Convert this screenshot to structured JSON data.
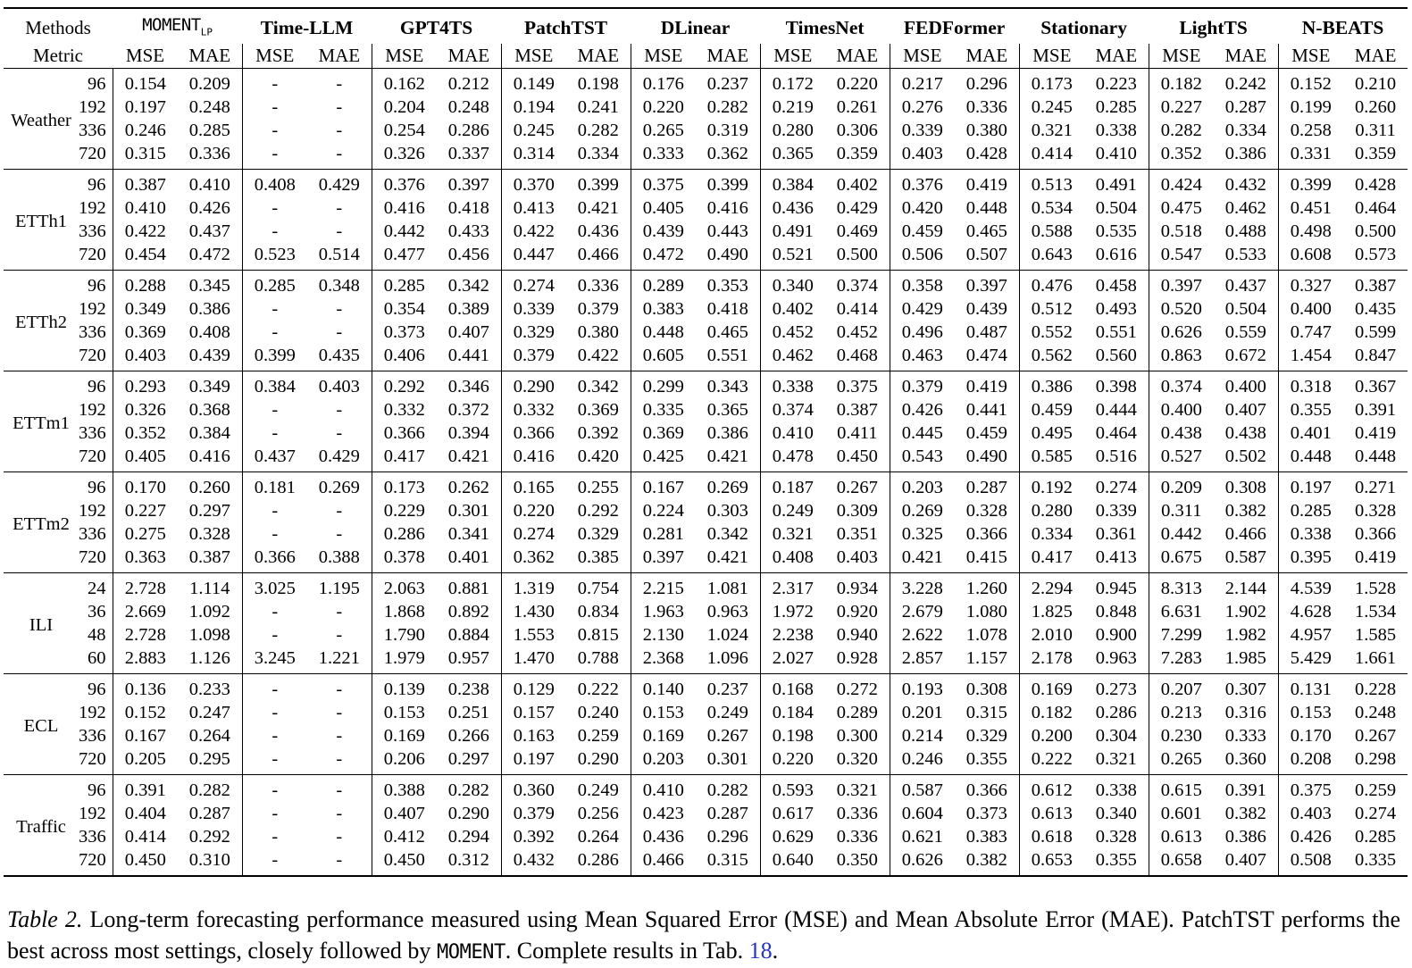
{
  "table": {
    "corner": {
      "methods_label": "Methods",
      "metric_label": "Metric"
    },
    "metric_cols": [
      "MSE",
      "MAE"
    ],
    "methods": [
      {
        "name": "MOMENT",
        "subscript": "LP",
        "font": "mono"
      },
      {
        "name": "Time-LLM"
      },
      {
        "name": "GPT4TS"
      },
      {
        "name": "PatchTST"
      },
      {
        "name": "DLinear"
      },
      {
        "name": "TimesNet"
      },
      {
        "name": "FEDFormer"
      },
      {
        "name": "Stationary"
      },
      {
        "name": "LightTS"
      },
      {
        "name": "N-BEATS"
      }
    ],
    "groups": [
      {
        "dataset": "Weather",
        "rows": [
          {
            "horizon": "96",
            "cells": [
              "0.154",
              "0.209",
              "-",
              "-",
              "0.162",
              "0.212",
              "0.149",
              "0.198",
              "0.176",
              "0.237",
              "0.172",
              "0.220",
              "0.217",
              "0.296",
              "0.173",
              "0.223",
              "0.182",
              "0.242",
              "0.152",
              "0.210"
            ]
          },
          {
            "horizon": "192",
            "cells": [
              "0.197",
              "0.248",
              "-",
              "-",
              "0.204",
              "0.248",
              "0.194",
              "0.241",
              "0.220",
              "0.282",
              "0.219",
              "0.261",
              "0.276",
              "0.336",
              "0.245",
              "0.285",
              "0.227",
              "0.287",
              "0.199",
              "0.260"
            ]
          },
          {
            "horizon": "336",
            "cells": [
              "0.246",
              "0.285",
              "-",
              "-",
              "0.254",
              "0.286",
              "0.245",
              "0.282",
              "0.265",
              "0.319",
              "0.280",
              "0.306",
              "0.339",
              "0.380",
              "0.321",
              "0.338",
              "0.282",
              "0.334",
              "0.258",
              "0.311"
            ]
          },
          {
            "horizon": "720",
            "cells": [
              "0.315",
              "0.336",
              "-",
              "-",
              "0.326",
              "0.337",
              "0.314",
              "0.334",
              "0.333",
              "0.362",
              "0.365",
              "0.359",
              "0.403",
              "0.428",
              "0.414",
              "0.410",
              "0.352",
              "0.386",
              "0.331",
              "0.359"
            ]
          }
        ]
      },
      {
        "dataset": "ETTh1",
        "rows": [
          {
            "horizon": "96",
            "cells": [
              "0.387",
              "0.410",
              "0.408",
              "0.429",
              "0.376",
              "0.397",
              "0.370",
              "0.399",
              "0.375",
              "0.399",
              "0.384",
              "0.402",
              "0.376",
              "0.419",
              "0.513",
              "0.491",
              "0.424",
              "0.432",
              "0.399",
              "0.428"
            ]
          },
          {
            "horizon": "192",
            "cells": [
              "0.410",
              "0.426",
              "-",
              "-",
              "0.416",
              "0.418",
              "0.413",
              "0.421",
              "0.405",
              "0.416",
              "0.436",
              "0.429",
              "0.420",
              "0.448",
              "0.534",
              "0.504",
              "0.475",
              "0.462",
              "0.451",
              "0.464"
            ]
          },
          {
            "horizon": "336",
            "cells": [
              "0.422",
              "0.437",
              "-",
              "-",
              "0.442",
              "0.433",
              "0.422",
              "0.436",
              "0.439",
              "0.443",
              "0.491",
              "0.469",
              "0.459",
              "0.465",
              "0.588",
              "0.535",
              "0.518",
              "0.488",
              "0.498",
              "0.500"
            ]
          },
          {
            "horizon": "720",
            "cells": [
              "0.454",
              "0.472",
              "0.523",
              "0.514",
              "0.477",
              "0.456",
              "0.447",
              "0.466",
              "0.472",
              "0.490",
              "0.521",
              "0.500",
              "0.506",
              "0.507",
              "0.643",
              "0.616",
              "0.547",
              "0.533",
              "0.608",
              "0.573"
            ]
          }
        ]
      },
      {
        "dataset": "ETTh2",
        "rows": [
          {
            "horizon": "96",
            "cells": [
              "0.288",
              "0.345",
              "0.285",
              "0.348",
              "0.285",
              "0.342",
              "0.274",
              "0.336",
              "0.289",
              "0.353",
              "0.340",
              "0.374",
              "0.358",
              "0.397",
              "0.476",
              "0.458",
              "0.397",
              "0.437",
              "0.327",
              "0.387"
            ]
          },
          {
            "horizon": "192",
            "cells": [
              "0.349",
              "0.386",
              "-",
              "-",
              "0.354",
              "0.389",
              "0.339",
              "0.379",
              "0.383",
              "0.418",
              "0.402",
              "0.414",
              "0.429",
              "0.439",
              "0.512",
              "0.493",
              "0.520",
              "0.504",
              "0.400",
              "0.435"
            ]
          },
          {
            "horizon": "336",
            "cells": [
              "0.369",
              "0.408",
              "-",
              "-",
              "0.373",
              "0.407",
              "0.329",
              "0.380",
              "0.448",
              "0.465",
              "0.452",
              "0.452",
              "0.496",
              "0.487",
              "0.552",
              "0.551",
              "0.626",
              "0.559",
              "0.747",
              "0.599"
            ]
          },
          {
            "horizon": "720",
            "cells": [
              "0.403",
              "0.439",
              "0.399",
              "0.435",
              "0.406",
              "0.441",
              "0.379",
              "0.422",
              "0.605",
              "0.551",
              "0.462",
              "0.468",
              "0.463",
              "0.474",
              "0.562",
              "0.560",
              "0.863",
              "0.672",
              "1.454",
              "0.847"
            ]
          }
        ]
      },
      {
        "dataset": "ETTm1",
        "rows": [
          {
            "horizon": "96",
            "cells": [
              "0.293",
              "0.349",
              "0.384",
              "0.403",
              "0.292",
              "0.346",
              "0.290",
              "0.342",
              "0.299",
              "0.343",
              "0.338",
              "0.375",
              "0.379",
              "0.419",
              "0.386",
              "0.398",
              "0.374",
              "0.400",
              "0.318",
              "0.367"
            ]
          },
          {
            "horizon": "192",
            "cells": [
              "0.326",
              "0.368",
              "-",
              "-",
              "0.332",
              "0.372",
              "0.332",
              "0.369",
              "0.335",
              "0.365",
              "0.374",
              "0.387",
              "0.426",
              "0.441",
              "0.459",
              "0.444",
              "0.400",
              "0.407",
              "0.355",
              "0.391"
            ]
          },
          {
            "horizon": "336",
            "cells": [
              "0.352",
              "0.384",
              "-",
              "-",
              "0.366",
              "0.394",
              "0.366",
              "0.392",
              "0.369",
              "0.386",
              "0.410",
              "0.411",
              "0.445",
              "0.459",
              "0.495",
              "0.464",
              "0.438",
              "0.438",
              "0.401",
              "0.419"
            ]
          },
          {
            "horizon": "720",
            "cells": [
              "0.405",
              "0.416",
              "0.437",
              "0.429",
              "0.417",
              "0.421",
              "0.416",
              "0.420",
              "0.425",
              "0.421",
              "0.478",
              "0.450",
              "0.543",
              "0.490",
              "0.585",
              "0.516",
              "0.527",
              "0.502",
              "0.448",
              "0.448"
            ]
          }
        ]
      },
      {
        "dataset": "ETTm2",
        "rows": [
          {
            "horizon": "96",
            "cells": [
              "0.170",
              "0.260",
              "0.181",
              "0.269",
              "0.173",
              "0.262",
              "0.165",
              "0.255",
              "0.167",
              "0.269",
              "0.187",
              "0.267",
              "0.203",
              "0.287",
              "0.192",
              "0.274",
              "0.209",
              "0.308",
              "0.197",
              "0.271"
            ]
          },
          {
            "horizon": "192",
            "cells": [
              "0.227",
              "0.297",
              "-",
              "-",
              "0.229",
              "0.301",
              "0.220",
              "0.292",
              "0.224",
              "0.303",
              "0.249",
              "0.309",
              "0.269",
              "0.328",
              "0.280",
              "0.339",
              "0.311",
              "0.382",
              "0.285",
              "0.328"
            ]
          },
          {
            "horizon": "336",
            "cells": [
              "0.275",
              "0.328",
              "-",
              "-",
              "0.286",
              "0.341",
              "0.274",
              "0.329",
              "0.281",
              "0.342",
              "0.321",
              "0.351",
              "0.325",
              "0.366",
              "0.334",
              "0.361",
              "0.442",
              "0.466",
              "0.338",
              "0.366"
            ]
          },
          {
            "horizon": "720",
            "cells": [
              "0.363",
              "0.387",
              "0.366",
              "0.388",
              "0.378",
              "0.401",
              "0.362",
              "0.385",
              "0.397",
              "0.421",
              "0.408",
              "0.403",
              "0.421",
              "0.415",
              "0.417",
              "0.413",
              "0.675",
              "0.587",
              "0.395",
              "0.419"
            ]
          }
        ]
      },
      {
        "dataset": "ILI",
        "rows": [
          {
            "horizon": "24",
            "cells": [
              "2.728",
              "1.114",
              "3.025",
              "1.195",
              "2.063",
              "0.881",
              "1.319",
              "0.754",
              "2.215",
              "1.081",
              "2.317",
              "0.934",
              "3.228",
              "1.260",
              "2.294",
              "0.945",
              "8.313",
              "2.144",
              "4.539",
              "1.528"
            ]
          },
          {
            "horizon": "36",
            "cells": [
              "2.669",
              "1.092",
              "-",
              "-",
              "1.868",
              "0.892",
              "1.430",
              "0.834",
              "1.963",
              "0.963",
              "1.972",
              "0.920",
              "2.679",
              "1.080",
              "1.825",
              "0.848",
              "6.631",
              "1.902",
              "4.628",
              "1.534"
            ]
          },
          {
            "horizon": "48",
            "cells": [
              "2.728",
              "1.098",
              "-",
              "-",
              "1.790",
              "0.884",
              "1.553",
              "0.815",
              "2.130",
              "1.024",
              "2.238",
              "0.940",
              "2.622",
              "1.078",
              "2.010",
              "0.900",
              "7.299",
              "1.982",
              "4.957",
              "1.585"
            ]
          },
          {
            "horizon": "60",
            "cells": [
              "2.883",
              "1.126",
              "3.245",
              "1.221",
              "1.979",
              "0.957",
              "1.470",
              "0.788",
              "2.368",
              "1.096",
              "2.027",
              "0.928",
              "2.857",
              "1.157",
              "2.178",
              "0.963",
              "7.283",
              "1.985",
              "5.429",
              "1.661"
            ]
          }
        ]
      },
      {
        "dataset": "ECL",
        "rows": [
          {
            "horizon": "96",
            "cells": [
              "0.136",
              "0.233",
              "-",
              "-",
              "0.139",
              "0.238",
              "0.129",
              "0.222",
              "0.140",
              "0.237",
              "0.168",
              "0.272",
              "0.193",
              "0.308",
              "0.169",
              "0.273",
              "0.207",
              "0.307",
              "0.131",
              "0.228"
            ]
          },
          {
            "horizon": "192",
            "cells": [
              "0.152",
              "0.247",
              "-",
              "-",
              "0.153",
              "0.251",
              "0.157",
              "0.240",
              "0.153",
              "0.249",
              "0.184",
              "0.289",
              "0.201",
              "0.315",
              "0.182",
              "0.286",
              "0.213",
              "0.316",
              "0.153",
              "0.248"
            ]
          },
          {
            "horizon": "336",
            "cells": [
              "0.167",
              "0.264",
              "-",
              "-",
              "0.169",
              "0.266",
              "0.163",
              "0.259",
              "0.169",
              "0.267",
              "0.198",
              "0.300",
              "0.214",
              "0.329",
              "0.200",
              "0.304",
              "0.230",
              "0.333",
              "0.170",
              "0.267"
            ]
          },
          {
            "horizon": "720",
            "cells": [
              "0.205",
              "0.295",
              "-",
              "-",
              "0.206",
              "0.297",
              "0.197",
              "0.290",
              "0.203",
              "0.301",
              "0.220",
              "0.320",
              "0.246",
              "0.355",
              "0.222",
              "0.321",
              "0.265",
              "0.360",
              "0.208",
              "0.298"
            ]
          }
        ]
      },
      {
        "dataset": "Traffic",
        "rows": [
          {
            "horizon": "96",
            "cells": [
              "0.391",
              "0.282",
              "-",
              "-",
              "0.388",
              "0.282",
              "0.360",
              "0.249",
              "0.410",
              "0.282",
              "0.593",
              "0.321",
              "0.587",
              "0.366",
              "0.612",
              "0.338",
              "0.615",
              "0.391",
              "0.375",
              "0.259"
            ]
          },
          {
            "horizon": "192",
            "cells": [
              "0.404",
              "0.287",
              "-",
              "-",
              "0.407",
              "0.290",
              "0.379",
              "0.256",
              "0.423",
              "0.287",
              "0.617",
              "0.336",
              "0.604",
              "0.373",
              "0.613",
              "0.340",
              "0.601",
              "0.382",
              "0.403",
              "0.274"
            ]
          },
          {
            "horizon": "336",
            "cells": [
              "0.414",
              "0.292",
              "-",
              "-",
              "0.412",
              "0.294",
              "0.392",
              "0.264",
              "0.436",
              "0.296",
              "0.629",
              "0.336",
              "0.621",
              "0.383",
              "0.618",
              "0.328",
              "0.613",
              "0.386",
              "0.426",
              "0.285"
            ]
          },
          {
            "horizon": "720",
            "cells": [
              "0.450",
              "0.310",
              "-",
              "-",
              "0.450",
              "0.312",
              "0.432",
              "0.286",
              "0.466",
              "0.315",
              "0.640",
              "0.350",
              "0.626",
              "0.382",
              "0.653",
              "0.355",
              "0.658",
              "0.407",
              "0.508",
              "0.335"
            ]
          }
        ]
      }
    ]
  },
  "caption": {
    "link_color": "#2533c4",
    "parts": [
      {
        "text": "Table 2.",
        "style": "italic"
      },
      {
        "text": " Long-term forecasting performance measured using Mean Squared Error (MSE) and Mean Absolute Error (MAE). PatchTST performs the best across most settings, closely followed by ",
        "style": "normal"
      },
      {
        "text": "MOMENT",
        "style": "mono"
      },
      {
        "text": ". Complete results in Tab. ",
        "style": "normal"
      },
      {
        "text": "18",
        "style": "link"
      },
      {
        "text": ".",
        "style": "normal"
      }
    ]
  }
}
